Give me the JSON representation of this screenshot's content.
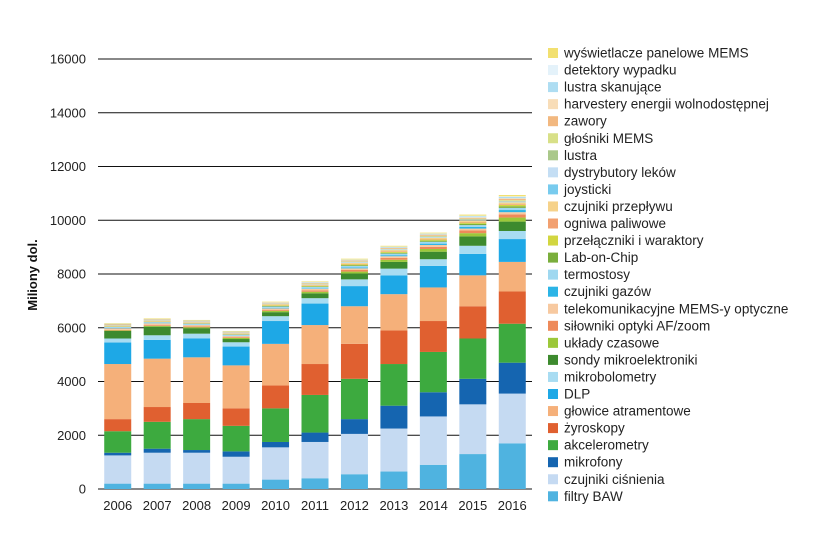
{
  "chart_data": {
    "type": "bar",
    "stacked": true,
    "ylabel": "Miliony dol.",
    "ylim": [
      0,
      16000
    ],
    "yticks": [
      0,
      2000,
      4000,
      6000,
      8000,
      10000,
      12000,
      14000,
      16000
    ],
    "grid": true,
    "legend_position": "right",
    "categories": [
      "2006",
      "2007",
      "2008",
      "2009",
      "2010",
      "2011",
      "2012",
      "2013",
      "2014",
      "2015",
      "2016"
    ],
    "series": [
      {
        "name": "filtry BAW",
        "color": "#4fb3e0",
        "values": [
          200,
          200,
          200,
          200,
          350,
          400,
          550,
          650,
          900,
          1300,
          1700
        ]
      },
      {
        "name": "czujniki ciśnienia",
        "color": "#c5daf2",
        "values": [
          1050,
          1150,
          1150,
          1000,
          1200,
          1350,
          1500,
          1600,
          1800,
          1850,
          1850
        ]
      },
      {
        "name": "mikrofony",
        "color": "#1565b0",
        "values": [
          100,
          150,
          100,
          200,
          200,
          350,
          550,
          850,
          900,
          950,
          1150
        ]
      },
      {
        "name": "akcelerometry",
        "color": "#3daa3f",
        "values": [
          800,
          1000,
          1150,
          950,
          1250,
          1400,
          1500,
          1550,
          1500,
          1500,
          1450
        ]
      },
      {
        "name": "żyroskopy",
        "color": "#e06030",
        "values": [
          450,
          550,
          600,
          650,
          850,
          1150,
          1300,
          1250,
          1150,
          1200,
          1200
        ]
      },
      {
        "name": "głowice atramentowe",
        "color": "#f5b07a",
        "values": [
          2050,
          1800,
          1700,
          1600,
          1550,
          1450,
          1400,
          1350,
          1250,
          1150,
          1100
        ]
      },
      {
        "name": "DLP",
        "color": "#1ea8e6",
        "values": [
          800,
          700,
          700,
          700,
          850,
          800,
          750,
          700,
          800,
          800,
          850
        ]
      },
      {
        "name": "mikrobolometry",
        "color": "#a8dcf2",
        "values": [
          150,
          170,
          180,
          160,
          180,
          200,
          250,
          250,
          250,
          300,
          300
        ]
      },
      {
        "name": "sondy mikroelektroniki",
        "color": "#3d8a2e",
        "values": [
          280,
          320,
          200,
          120,
          150,
          180,
          220,
          250,
          280,
          350,
          350
        ]
      },
      {
        "name": "układy czasowe",
        "color": "#9cc83a",
        "values": [
          20,
          30,
          40,
          40,
          50,
          60,
          70,
          80,
          100,
          120,
          150
        ]
      },
      {
        "name": "siłowniki optyki AF/zoom",
        "color": "#ee8a5a",
        "values": [
          20,
          30,
          30,
          30,
          40,
          50,
          60,
          70,
          80,
          100,
          120
        ]
      },
      {
        "name": "telekomunikacyjne MEMS-y optyczne",
        "color": "#f7c9a0",
        "values": [
          60,
          60,
          50,
          40,
          50,
          60,
          60,
          60,
          70,
          70,
          80
        ]
      },
      {
        "name": "czujniki gazów",
        "color": "#2bb4e6",
        "values": [
          10,
          10,
          10,
          10,
          20,
          20,
          30,
          40,
          50,
          60,
          80
        ]
      },
      {
        "name": "termostosy",
        "color": "#9fd8f0",
        "values": [
          40,
          40,
          40,
          40,
          50,
          50,
          60,
          60,
          70,
          70,
          80
        ]
      },
      {
        "name": "Lab-on-Chip",
        "color": "#7aae3c",
        "values": [
          10,
          10,
          10,
          10,
          20,
          20,
          30,
          30,
          40,
          50,
          60
        ]
      },
      {
        "name": "przełączniki i waraktory",
        "color": "#d2d640",
        "values": [
          10,
          10,
          10,
          10,
          20,
          20,
          30,
          30,
          40,
          40,
          50
        ]
      },
      {
        "name": "ogniwa paliwowe",
        "color": "#f2a070",
        "values": [
          10,
          10,
          10,
          10,
          10,
          10,
          20,
          20,
          20,
          30,
          30
        ]
      },
      {
        "name": "czujniki przepływu",
        "color": "#f6d28a",
        "values": [
          30,
          30,
          30,
          30,
          40,
          40,
          40,
          50,
          50,
          50,
          60
        ]
      },
      {
        "name": "joysticki",
        "color": "#78cbee",
        "values": [
          10,
          10,
          10,
          10,
          10,
          10,
          10,
          10,
          10,
          10,
          10
        ]
      },
      {
        "name": "dystrybutory leków",
        "color": "#c4def4",
        "values": [
          10,
          10,
          10,
          10,
          10,
          10,
          20,
          20,
          20,
          20,
          30
        ]
      },
      {
        "name": "lustra",
        "color": "#aac88a",
        "values": [
          10,
          10,
          10,
          10,
          10,
          10,
          10,
          10,
          20,
          20,
          20
        ]
      },
      {
        "name": "głośniki MEMS",
        "color": "#d8e088",
        "values": [
          0,
          0,
          0,
          0,
          0,
          10,
          10,
          10,
          20,
          20,
          30
        ]
      },
      {
        "name": "zawory",
        "color": "#f2b880",
        "values": [
          20,
          20,
          20,
          20,
          20,
          20,
          30,
          30,
          30,
          30,
          40
        ]
      },
      {
        "name": "harvestery energii wolnodostępnej",
        "color": "#f8ddb8",
        "values": [
          0,
          0,
          0,
          0,
          10,
          10,
          10,
          10,
          20,
          20,
          30
        ]
      },
      {
        "name": "lustra skanujące",
        "color": "#aeddf2",
        "values": [
          10,
          10,
          10,
          10,
          10,
          20,
          20,
          30,
          30,
          40,
          50
        ]
      },
      {
        "name": "detektory wypadku",
        "color": "#e4f2fa",
        "values": [
          0,
          0,
          0,
          0,
          0,
          10,
          10,
          10,
          10,
          20,
          20
        ]
      },
      {
        "name": "wyświetlacze panelowe MEMS",
        "color": "#f2e070",
        "values": [
          20,
          20,
          20,
          20,
          20,
          20,
          30,
          30,
          30,
          40,
          50
        ]
      }
    ]
  }
}
